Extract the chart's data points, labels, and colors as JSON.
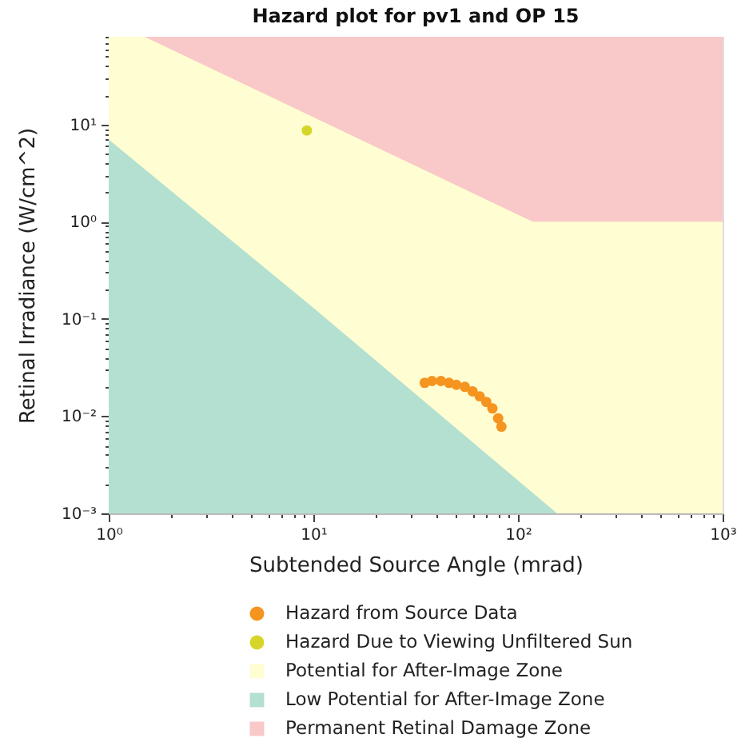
{
  "chart_data": {
    "type": "scatter",
    "title": "Hazard plot for pv1 and OP 15",
    "xlabel": "Subtended Source Angle (mrad)",
    "ylabel": "Retinal Irradiance (W/cm^2)",
    "log": "xy",
    "xlim": [
      1,
      1000
    ],
    "ylim": [
      0.001,
      80
    ],
    "xticks": [
      {
        "value": 1,
        "label": "10⁰"
      },
      {
        "value": 2,
        "label": null
      },
      {
        "value": 3,
        "label": null
      },
      {
        "value": 4,
        "label": null
      },
      {
        "value": 5,
        "label": null
      },
      {
        "value": 6,
        "label": null
      },
      {
        "value": 7,
        "label": null
      },
      {
        "value": 8,
        "label": null
      },
      {
        "value": 9,
        "label": null
      },
      {
        "value": 10,
        "label": "10¹"
      },
      {
        "value": 20,
        "label": null
      },
      {
        "value": 30,
        "label": null
      },
      {
        "value": 40,
        "label": null
      },
      {
        "value": 50,
        "label": null
      },
      {
        "value": 60,
        "label": null
      },
      {
        "value": 70,
        "label": null
      },
      {
        "value": 80,
        "label": null
      },
      {
        "value": 90,
        "label": null
      },
      {
        "value": 100,
        "label": "10²"
      },
      {
        "value": 200,
        "label": null
      },
      {
        "value": 300,
        "label": null
      },
      {
        "value": 400,
        "label": null
      },
      {
        "value": 500,
        "label": null
      },
      {
        "value": 600,
        "label": null
      },
      {
        "value": 700,
        "label": null
      },
      {
        "value": 800,
        "label": null
      },
      {
        "value": 900,
        "label": null
      },
      {
        "value": 1000,
        "label": "10³"
      }
    ],
    "yticks": [
      {
        "value": 0.001,
        "label": "10⁻³"
      },
      {
        "value": 0.002,
        "label": null
      },
      {
        "value": 0.003,
        "label": null
      },
      {
        "value": 0.004,
        "label": null
      },
      {
        "value": 0.005,
        "label": null
      },
      {
        "value": 0.006,
        "label": null
      },
      {
        "value": 0.007,
        "label": null
      },
      {
        "value": 0.008,
        "label": null
      },
      {
        "value": 0.009,
        "label": null
      },
      {
        "value": 0.01,
        "label": "10⁻²"
      },
      {
        "value": 0.02,
        "label": null
      },
      {
        "value": 0.03,
        "label": null
      },
      {
        "value": 0.04,
        "label": null
      },
      {
        "value": 0.05,
        "label": null
      },
      {
        "value": 0.06,
        "label": null
      },
      {
        "value": 0.07,
        "label": null
      },
      {
        "value": 0.08,
        "label": null
      },
      {
        "value": 0.09,
        "label": null
      },
      {
        "value": 0.1,
        "label": "10⁻¹"
      },
      {
        "value": 0.2,
        "label": null
      },
      {
        "value": 0.3,
        "label": null
      },
      {
        "value": 0.4,
        "label": null
      },
      {
        "value": 0.5,
        "label": null
      },
      {
        "value": 0.6,
        "label": null
      },
      {
        "value": 0.7,
        "label": null
      },
      {
        "value": 0.8,
        "label": null
      },
      {
        "value": 0.9,
        "label": null
      },
      {
        "value": 1,
        "label": "10⁰"
      },
      {
        "value": 2,
        "label": null
      },
      {
        "value": 3,
        "label": null
      },
      {
        "value": 4,
        "label": null
      },
      {
        "value": 5,
        "label": null
      },
      {
        "value": 6,
        "label": null
      },
      {
        "value": 7,
        "label": null
      },
      {
        "value": 8,
        "label": null
      },
      {
        "value": 9,
        "label": null
      },
      {
        "value": 10,
        "label": "10¹"
      },
      {
        "value": 20,
        "label": null
      },
      {
        "value": 30,
        "label": null
      },
      {
        "value": 40,
        "label": null
      },
      {
        "value": 50,
        "label": null
      },
      {
        "value": 60,
        "label": null
      },
      {
        "value": 70,
        "label": null
      },
      {
        "value": 80,
        "label": null
      }
    ],
    "legend": "bottom",
    "series": [
      {
        "name": "Hazard from Source Data",
        "marker": "circle",
        "color": "#f5941e",
        "x": [
          35,
          38,
          42,
          46,
          50,
          55,
          60,
          65,
          70,
          75,
          80,
          83
        ],
        "values": [
          0.022,
          0.023,
          0.023,
          0.022,
          0.021,
          0.02,
          0.018,
          0.016,
          0.014,
          0.012,
          0.0095,
          0.0078
        ]
      },
      {
        "name": "Hazard Due to Viewing Unfiltered Sun",
        "marker": "circle",
        "color": "#d6d629",
        "x": [
          9.3
        ],
        "values": [
          8.7
        ]
      },
      {
        "name": "Potential for After-Image Zone",
        "type": "area",
        "color": "#fffdd2",
        "x": [
          1,
          1.5,
          118,
          1000
        ],
        "values": [
          80,
          80,
          1,
          1
        ]
      },
      {
        "name": "Low Potential for After-Image Zone",
        "type": "area",
        "color": "#b3e0d0",
        "x": [
          1,
          10,
          155
        ],
        "values": [
          7,
          0.13,
          0.001
        ]
      },
      {
        "name": "Permanent Retinal Damage Zone",
        "type": "area",
        "color": "#f9c8c8",
        "x": [
          1.5,
          1000
        ],
        "values": [
          80,
          80
        ]
      }
    ]
  }
}
